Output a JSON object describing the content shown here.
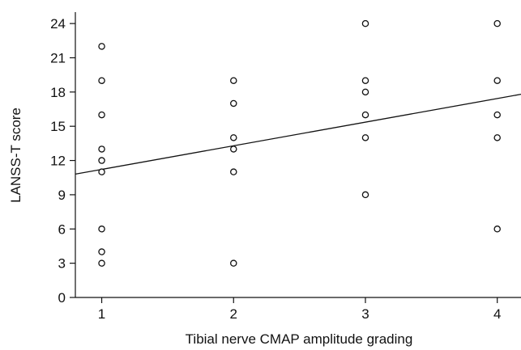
{
  "chart_data": {
    "type": "scatter",
    "title": "",
    "xlabel": "Tibial nerve CMAP amplitude grading",
    "ylabel": "LANSS-T score",
    "xlim": [
      0.8,
      4.18
    ],
    "ylim": [
      0,
      25
    ],
    "xticks": [
      1,
      2,
      3,
      4
    ],
    "yticks": [
      0,
      3,
      6,
      9,
      12,
      15,
      18,
      21,
      24
    ],
    "grid": false,
    "legend": "none",
    "marker": "open-circle",
    "colors": {
      "axis": "#111111",
      "marker": "#111111",
      "line": "#111111"
    },
    "series": [
      {
        "points": [
          [
            1,
            3
          ],
          [
            1,
            4
          ],
          [
            1,
            6
          ],
          [
            1,
            11
          ],
          [
            1,
            12
          ],
          [
            1,
            13
          ],
          [
            1,
            16
          ],
          [
            1,
            19
          ],
          [
            1,
            22
          ],
          [
            2,
            3
          ],
          [
            2,
            11
          ],
          [
            2,
            13
          ],
          [
            2,
            14
          ],
          [
            2,
            17
          ],
          [
            2,
            19
          ],
          [
            3,
            9
          ],
          [
            3,
            14
          ],
          [
            3,
            16
          ],
          [
            3,
            18
          ],
          [
            3,
            19
          ],
          [
            3,
            24
          ],
          [
            4,
            6
          ],
          [
            4,
            14
          ],
          [
            4,
            16
          ],
          [
            4,
            19
          ],
          [
            4,
            24
          ]
        ]
      }
    ],
    "trendline": {
      "intercept": 9.15,
      "slope": 2.07,
      "x_range": [
        0.8,
        4.18
      ]
    }
  }
}
